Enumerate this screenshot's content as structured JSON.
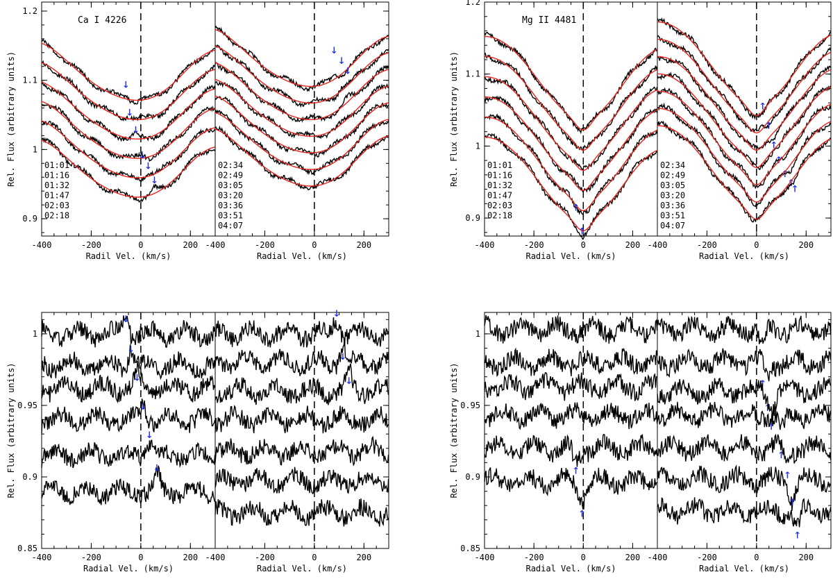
{
  "figure": {
    "colors": {
      "observed": "#000000",
      "model": "#e8231b",
      "marker": "#1a2ee6",
      "axis": "#000000"
    },
    "x_tick_labels": [
      "-400",
      "-200",
      "0",
      "200"
    ],
    "x_ticks": [
      -400,
      -200,
      0,
      200
    ],
    "arrow_glyph_down": "↓",
    "arrow_glyph_up": "↑"
  },
  "chart_data": [
    {
      "id": "ca-top",
      "type": "line",
      "title": "Ca I 4226",
      "ylabel": "Rel. Flux (arbitrary units)",
      "ylim": [
        0.875,
        1.213
      ],
      "yticks": [
        0.9,
        1.0,
        1.1,
        1.2
      ],
      "ytick_labels": [
        "0.9",
        "1",
        "1.1",
        "1.2"
      ],
      "panels": [
        {
          "xlabel": "Radil Vel. (km/s)",
          "xlim": [
            -400,
            300
          ],
          "labels": [
            "01:01",
            "01:16",
            "01:32",
            "01:47",
            "02:03",
            "02:18"
          ],
          "series": [
            {
              "name": "01:01",
              "offset": 0.0,
              "marker": {
                "x": -60,
                "y": 1.095,
                "dir": "down"
              }
            },
            {
              "name": "01:16",
              "offset": -0.028,
              "marker": {
                "x": -45,
                "y": 1.055,
                "dir": "down"
              }
            },
            {
              "name": "01:32",
              "offset": -0.056,
              "marker": {
                "x": -20,
                "y": 1.03,
                "dir": "down"
              }
            },
            {
              "name": "01:47",
              "offset": -0.084,
              "marker": {
                "x": 5,
                "y": 0.993,
                "dir": "down"
              }
            },
            {
              "name": "02:03",
              "offset": -0.112,
              "marker": {
                "x": 30,
                "y": 0.978,
                "dir": "down"
              }
            },
            {
              "name": "02:18",
              "offset": -0.14,
              "marker": {
                "x": 55,
                "y": 0.957,
                "dir": "down"
              }
            }
          ]
        },
        {
          "xlabel": "Radial Vel. (km/s)",
          "xlim": [
            -400,
            300
          ],
          "labels": [
            "02:34",
            "02:49",
            "03:05",
            "03:20",
            "03:36",
            "03:51",
            "04:07"
          ],
          "series": [
            {
              "name": "02:34",
              "offset": 0.0,
              "marker": {
                "x": 80,
                "y": 1.145,
                "dir": "down"
              }
            },
            {
              "name": "02:49",
              "offset": -0.024,
              "marker": {
                "x": 110,
                "y": 1.13,
                "dir": "down"
              }
            },
            {
              "name": "03:05",
              "offset": -0.048,
              "marker": {
                "x": 135,
                "y": 1.115,
                "dir": "down"
              }
            },
            {
              "name": "03:20",
              "offset": -0.072,
              "marker": null
            },
            {
              "name": "03:36",
              "offset": -0.096,
              "marker": null
            },
            {
              "name": "03:51",
              "offset": -0.12,
              "marker": null
            },
            {
              "name": "04:07",
              "offset": -0.144,
              "marker": null
            }
          ]
        }
      ]
    },
    {
      "id": "mg-top",
      "type": "line",
      "title": "Mg II 4481",
      "ylabel": "Rel. Flux (arbitrary units)",
      "ylim": [
        0.875,
        1.2
      ],
      "yticks": [
        0.9,
        1.0,
        1.1,
        1.2
      ],
      "ytick_labels": [
        "0.9",
        "1",
        "1.1",
        "1.2"
      ],
      "panels": [
        {
          "xlabel": "Radial Vel. (km/s)",
          "xlim": [
            -400,
            300
          ],
          "labels": [
            "01:01",
            "01:16",
            "01:32",
            "01:47",
            "02:03",
            "02:18"
          ],
          "series": [
            {
              "name": "01:01",
              "offset": 0.0,
              "marker": null
            },
            {
              "name": "01:16",
              "offset": -0.028,
              "marker": null
            },
            {
              "name": "01:32",
              "offset": -0.056,
              "marker": null
            },
            {
              "name": "01:47",
              "offset": -0.084,
              "marker": null
            },
            {
              "name": "02:03",
              "offset": -0.112,
              "marker": {
                "x": -30,
                "y": 0.916,
                "dir": "up"
              }
            },
            {
              "name": "02:18",
              "offset": -0.14,
              "marker": {
                "x": -5,
                "y": 0.883,
                "dir": "up"
              }
            }
          ]
        },
        {
          "xlabel": "Radial Vel. (km/s)",
          "xlim": [
            -400,
            300
          ],
          "labels": [
            "02:34",
            "02:49",
            "03:05",
            "03:20",
            "03:36",
            "03:51",
            "04:07"
          ],
          "series": [
            {
              "name": "02:34",
              "offset": 0.0,
              "marker": {
                "x": 25,
                "y": 1.057,
                "dir": "up"
              }
            },
            {
              "name": "02:49",
              "offset": -0.024,
              "marker": {
                "x": 50,
                "y": 1.03,
                "dir": "up"
              }
            },
            {
              "name": "03:05",
              "offset": -0.048,
              "marker": {
                "x": 70,
                "y": 1.003,
                "dir": "up"
              }
            },
            {
              "name": "03:20",
              "offset": -0.072,
              "marker": {
                "x": 90,
                "y": 0.982,
                "dir": "up"
              }
            },
            {
              "name": "03:36",
              "offset": -0.096,
              "marker": {
                "x": 115,
                "y": 0.963,
                "dir": "up"
              }
            },
            {
              "name": "03:51",
              "offset": -0.12,
              "marker": {
                "x": 140,
                "y": 0.95,
                "dir": "up"
              }
            },
            {
              "name": "04:07",
              "offset": -0.144,
              "marker": {
                "x": 155,
                "y": 0.942,
                "dir": "up"
              }
            }
          ]
        }
      ]
    },
    {
      "id": "ca-bottom",
      "type": "line",
      "title": "",
      "ylabel": "Rel. Flux (arbitrary units)",
      "ylim": [
        0.85,
        1.015
      ],
      "yticks": [
        0.85,
        0.9,
        0.95,
        1.0
      ],
      "ytick_labels": [
        "0.85",
        "0.9",
        "0.95",
        "1"
      ],
      "panels": [
        {
          "xlabel": "Radial Vel. (km/s)",
          "xlim": [
            -400,
            300
          ],
          "series": [
            {
              "name": "01:01",
              "base": 1.0,
              "marker": {
                "x": -60,
                "y": 1.011,
                "dir": "down"
              }
            },
            {
              "name": "01:16",
              "base": 0.978,
              "marker": {
                "x": -40,
                "y": 0.99,
                "dir": "down"
              }
            },
            {
              "name": "01:32",
              "base": 0.962,
              "marker": {
                "x": -15,
                "y": 0.97,
                "dir": "down"
              }
            },
            {
              "name": "01:47",
              "base": 0.94,
              "marker": {
                "x": 10,
                "y": 0.95,
                "dir": "down"
              }
            },
            {
              "name": "02:03",
              "base": 0.915,
              "marker": {
                "x": 35,
                "y": 0.93,
                "dir": "down"
              }
            },
            {
              "name": "02:18",
              "base": 0.89,
              "marker": {
                "x": 65,
                "y": 0.907,
                "dir": "down"
              }
            }
          ]
        },
        {
          "xlabel": "Radial Vel. (km/s)",
          "xlim": [
            -400,
            300
          ],
          "series": [
            {
              "name": "02:34",
              "base": 1.0,
              "marker": {
                "x": 90,
                "y": 1.015,
                "dir": "down"
              }
            },
            {
              "name": "02:49",
              "base": 0.98,
              "marker": {
                "x": 115,
                "y": 0.985,
                "dir": "down"
              }
            },
            {
              "name": "03:05",
              "base": 0.96,
              "marker": {
                "x": 140,
                "y": 0.968,
                "dir": "down"
              }
            },
            {
              "name": "03:20",
              "base": 0.94,
              "marker": null
            },
            {
              "name": "03:36",
              "base": 0.918,
              "marker": null
            },
            {
              "name": "03:51",
              "base": 0.897,
              "marker": null
            },
            {
              "name": "04:07",
              "base": 0.875,
              "marker": null
            }
          ]
        }
      ]
    },
    {
      "id": "mg-bottom",
      "type": "line",
      "title": "",
      "ylabel": "Rel. Flux (arbitrary units)",
      "ylim": [
        0.85,
        1.015
      ],
      "yticks": [
        0.85,
        0.9,
        0.95,
        1.0
      ],
      "ytick_labels": [
        "0.85",
        "0.9",
        "0.95",
        "1"
      ],
      "panels": [
        {
          "xlabel": "Radial Vel. (km/s)",
          "xlim": [
            -400,
            300
          ],
          "series": [
            {
              "name": "01:01",
              "base": 1.003,
              "marker": null
            },
            {
              "name": "01:16",
              "base": 0.98,
              "marker": null
            },
            {
              "name": "01:32",
              "base": 0.963,
              "marker": null
            },
            {
              "name": "01:47",
              "base": 0.943,
              "marker": null
            },
            {
              "name": "02:03",
              "base": 0.92,
              "marker": {
                "x": -30,
                "y": 0.905,
                "dir": "up"
              }
            },
            {
              "name": "02:18",
              "base": 0.897,
              "marker": {
                "x": -5,
                "y": 0.875,
                "dir": "up"
              }
            }
          ]
        },
        {
          "xlabel": "Radial Vel. (km/s)",
          "xlim": [
            -400,
            300
          ],
          "series": [
            {
              "name": "02:34",
              "base": 1.003,
              "marker": {
                "x": 25,
                "y": 0.966,
                "dir": "up"
              }
            },
            {
              "name": "02:49",
              "base": 0.98,
              "marker": {
                "x": 45,
                "y": 0.949,
                "dir": "up"
              }
            },
            {
              "name": "03:05",
              "base": 0.96,
              "marker": {
                "x": 60,
                "y": 0.936,
                "dir": "up"
              }
            },
            {
              "name": "03:20",
              "base": 0.943,
              "marker": {
                "x": 100,
                "y": 0.916,
                "dir": "up"
              }
            },
            {
              "name": "03:36",
              "base": 0.92,
              "marker": {
                "x": 125,
                "y": 0.902,
                "dir": "up"
              }
            },
            {
              "name": "03:51",
              "base": 0.898,
              "marker": {
                "x": 145,
                "y": 0.883,
                "dir": "up"
              }
            },
            {
              "name": "04:07",
              "base": 0.876,
              "marker": {
                "x": 165,
                "y": 0.86,
                "dir": "up"
              }
            }
          ]
        }
      ]
    }
  ]
}
